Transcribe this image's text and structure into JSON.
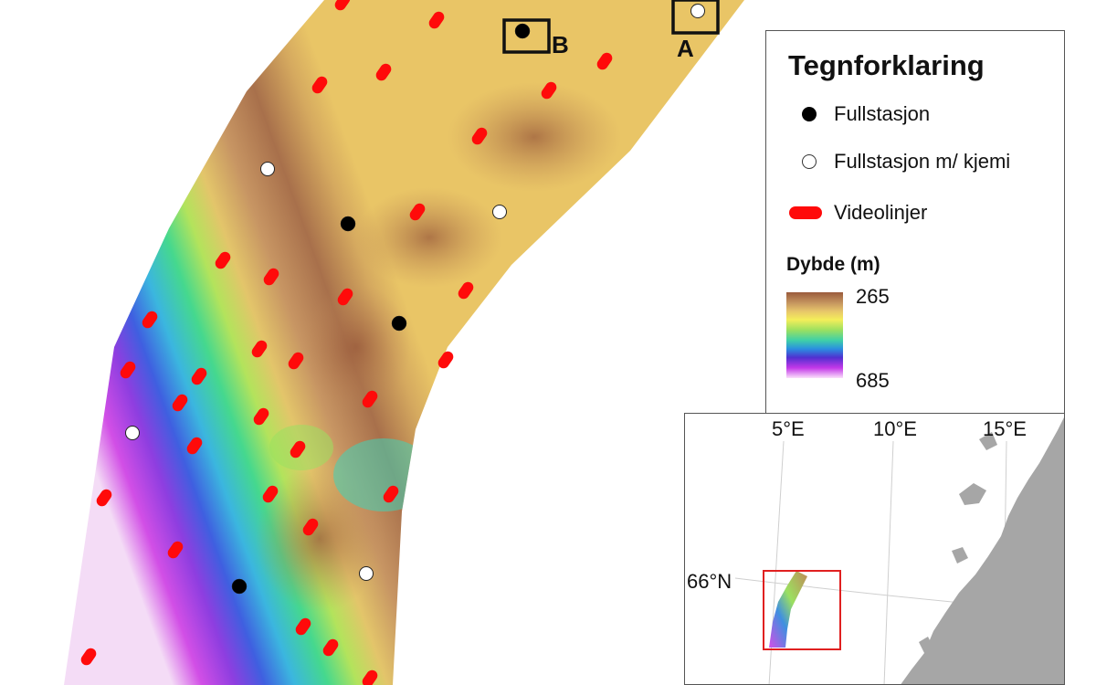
{
  "legend": {
    "title": "Tegnforklaring",
    "items": [
      {
        "label": "Fullstasjon",
        "symbol": "black-dot"
      },
      {
        "label": "Fullstasjon m/ kjemi",
        "symbol": "white-dot"
      },
      {
        "label": "Videolinjer",
        "symbol": "red-line"
      }
    ],
    "depth_title": "Dybde (m)",
    "depth_min_label": "265",
    "depth_max_label": "685"
  },
  "map_labels": {
    "box_a": "A",
    "box_b": "B"
  },
  "inset": {
    "lon_labels": [
      "5°E",
      "10°E",
      "15°E"
    ],
    "lat_label": "66°N",
    "land_color": "#a6a6a6",
    "box_color": "#e02020"
  },
  "colors": {
    "video_line": "#ff0a0a",
    "full_station": "#000000",
    "chem_station": "#ffffff"
  }
}
